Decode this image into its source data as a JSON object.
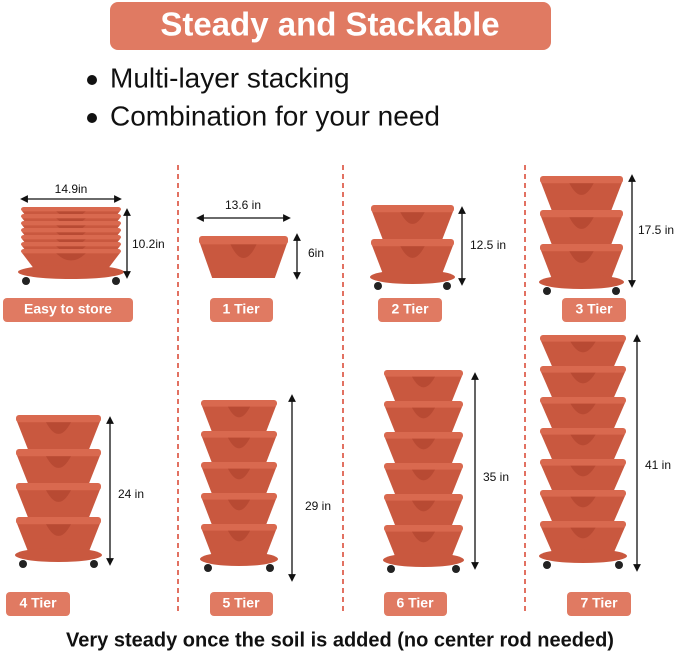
{
  "title": "Steady and Stackable",
  "bullets": [
    "Multi-layer stacking",
    "Combination for your need"
  ],
  "panels": [
    {
      "label": "Easy to store",
      "dimensions": [
        "14.9in",
        "10.2in"
      ]
    },
    {
      "label": "1 Tier",
      "dimensions": [
        "13.6 in",
        "6in"
      ]
    },
    {
      "label": "2 Tier",
      "dimensions": [
        "12.5 in"
      ]
    },
    {
      "label": "3 Tier",
      "dimensions": [
        "17.5 in"
      ]
    },
    {
      "label": "4 Tier",
      "dimensions": [
        "24 in"
      ]
    },
    {
      "label": "5 Tier",
      "dimensions": [
        "29 in"
      ]
    },
    {
      "label": "6 Tier",
      "dimensions": [
        "35 in"
      ]
    },
    {
      "label": "7 Tier",
      "dimensions": [
        "41 in"
      ]
    }
  ],
  "footer": "Very steady once the soil is added (no center rod needed)"
}
